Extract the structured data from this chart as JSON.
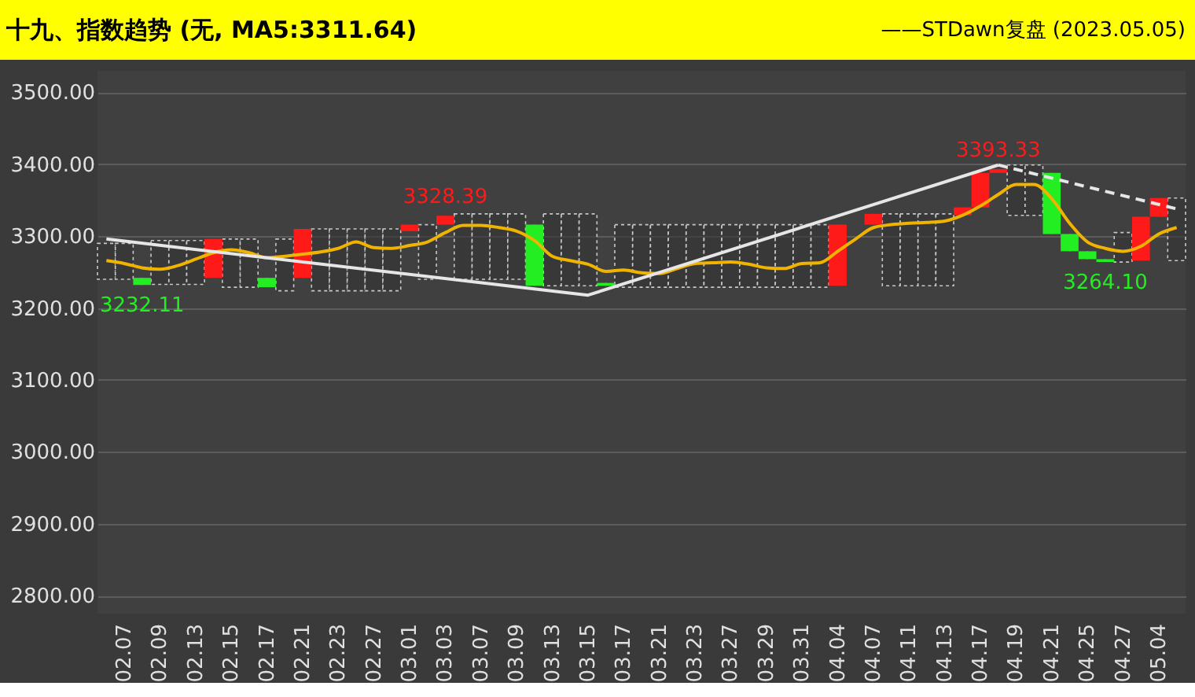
{
  "chart_data": {
    "type": "candlestick",
    "title": "十九、指数趋势 (无, MA5:3311.64)",
    "annotations": [
      "——STDawn复盘 (2023.05.05)"
    ],
    "categories": [
      null,
      "02.07",
      null,
      "02.09",
      null,
      "02.13",
      null,
      "02.15",
      null,
      "02.17",
      null,
      "02.21",
      null,
      "02.23",
      null,
      "02.27",
      null,
      "03.01",
      null,
      "03.03",
      null,
      "03.07",
      null,
      "03.09",
      null,
      "03.13",
      null,
      "03.15",
      null,
      "03.17",
      null,
      "03.21",
      null,
      "03.23",
      null,
      "03.27",
      null,
      "03.29",
      null,
      "03.31",
      null,
      "04.04",
      null,
      "04.07",
      null,
      "04.11",
      null,
      "04.13",
      null,
      "04.17",
      null,
      "04.19",
      null,
      "04.21",
      null,
      "04.25",
      null,
      "04.27",
      null,
      "05.04",
      null
    ],
    "ohlc": [
      null,
      null,
      [
        3242,
        3242,
        3232.11,
        3232.11
      ],
      null,
      null,
      null,
      [
        3242,
        3296,
        3242,
        3296
      ],
      null,
      null,
      [
        3242,
        3242,
        3229,
        3229
      ],
      null,
      [
        3242,
        3310,
        3242,
        3310
      ],
      null,
      null,
      null,
      null,
      null,
      [
        3307,
        3316,
        3307,
        3316
      ],
      null,
      [
        3316,
        3328.39,
        3316,
        3328.39
      ],
      null,
      null,
      null,
      null,
      [
        3316,
        3316,
        3231,
        3231
      ],
      null,
      null,
      null,
      [
        3235,
        3235,
        3231,
        3231
      ],
      null,
      null,
      null,
      null,
      null,
      null,
      null,
      null,
      null,
      null,
      null,
      null,
      [
        3231,
        3316,
        3231,
        3316
      ],
      null,
      [
        3316,
        3331,
        3316,
        3331
      ],
      null,
      null,
      null,
      null,
      [
        3329,
        3340,
        3329,
        3340
      ],
      [
        3340,
        3388,
        3340,
        3388
      ],
      [
        3388,
        3393.33,
        3388,
        3393.33
      ],
      null,
      null,
      [
        3388,
        3388,
        3303,
        3303
      ],
      [
        3303,
        3303,
        3279,
        3279
      ],
      [
        3279,
        3279,
        3268,
        3268
      ],
      [
        3268,
        3268,
        3264.1,
        3264.1
      ],
      null,
      [
        3266,
        3327,
        3266,
        3327
      ],
      [
        3327,
        3353,
        3327,
        3353
      ],
      null
    ],
    "colors": [
      null,
      null,
      "#22ee22",
      null,
      null,
      null,
      "#ff1a1a",
      null,
      null,
      "#22ee22",
      null,
      "#ff1a1a",
      null,
      null,
      null,
      null,
      null,
      "#ff1a1a",
      null,
      "#ff1a1a",
      null,
      null,
      null,
      null,
      "#22ee22",
      null,
      null,
      null,
      "#22ee22",
      null,
      null,
      null,
      null,
      null,
      null,
      null,
      null,
      null,
      null,
      null,
      null,
      "#ff1a1a",
      null,
      "#ff1a1a",
      null,
      null,
      null,
      null,
      "#ff1a1a",
      "#ff1a1a",
      "#ff1a1a",
      null,
      null,
      "#22ee22",
      "#22ee22",
      "#22ee22",
      "#22ee22",
      null,
      "#ff1a1a",
      "#ff1a1a",
      null
    ],
    "value_labels": [
      null,
      null,
      "3232.11",
      null,
      null,
      null,
      null,
      null,
      null,
      null,
      null,
      null,
      null,
      null,
      null,
      null,
      null,
      null,
      null,
      "3328.39",
      null,
      null,
      null,
      null,
      null,
      null,
      null,
      null,
      null,
      null,
      null,
      null,
      null,
      null,
      null,
      null,
      null,
      null,
      null,
      null,
      null,
      null,
      null,
      null,
      null,
      null,
      null,
      null,
      null,
      null,
      "3393.33",
      null,
      null,
      null,
      null,
      null,
      "3264.10",
      null,
      null,
      null,
      null
    ],
    "series": [
      {
        "type": "bar",
        "color": "#c8c8c8",
        "base": [
          3240,
          3240,
          null,
          3233,
          3233,
          3233,
          null,
          3229,
          3229,
          null,
          3224,
          null,
          3224,
          3224,
          3224,
          3224,
          3224,
          null,
          3240,
          null,
          3240,
          3240,
          3240,
          3240,
          null,
          3231,
          3231,
          3231,
          null,
          3229,
          3229,
          3229,
          3229,
          3229,
          3229,
          3229,
          3229,
          3229,
          3229,
          3229,
          3229,
          null,
          null,
          null,
          3231,
          3231,
          3231,
          3231,
          null,
          null,
          null,
          3329,
          3329,
          null,
          null,
          null,
          null,
          3264,
          null,
          null,
          3266
        ],
        "values": [
          50,
          50,
          null,
          61,
          61,
          61,
          null,
          67,
          67,
          null,
          72,
          null,
          86,
          86,
          86,
          86,
          86,
          null,
          76,
          null,
          91,
          91,
          91,
          91,
          null,
          100,
          100,
          100,
          null,
          87,
          87,
          87,
          87,
          87,
          87,
          87,
          87,
          87,
          87,
          87,
          87,
          null,
          null,
          null,
          100,
          100,
          100,
          100,
          null,
          null,
          null,
          70,
          70,
          null,
          null,
          null,
          null,
          41,
          null,
          null,
          87
        ]
      },
      {
        "type": "line",
        "color": "#f0b400",
        "line_style": "solid",
        "values": [
          3266,
          3262,
          3256,
          3254,
          3259,
          3268,
          3277,
          3281,
          3277,
          3270,
          3272,
          3275,
          3278,
          3283,
          3292,
          3284,
          3283,
          3287,
          3292,
          3305,
          3315,
          3315,
          3312,
          3307,
          3294,
          3272,
          3266,
          3261,
          3251,
          3253,
          3249,
          3248,
          3255,
          3262,
          3263,
          3264,
          3261,
          3256,
          3255,
          3262,
          3263,
          3279,
          3296,
          3312,
          3316,
          3318,
          3319,
          3321,
          3329,
          3342,
          3358,
          3372,
          3372,
          3352,
          3318,
          3292,
          3283,
          3279,
          3286,
          3303,
          3312
        ]
      },
      {
        "type": "line",
        "color": "#e6e6e6",
        "line_style": "solid",
        "values": [
          3296,
          null,
          null,
          null,
          null,
          null,
          null,
          null,
          null,
          null,
          null,
          null,
          null,
          null,
          null,
          null,
          null,
          null,
          null,
          null,
          null,
          null,
          null,
          null,
          null,
          null,
          null,
          3218,
          null,
          null,
          null,
          null,
          null,
          null,
          null,
          null,
          null,
          null,
          null,
          null,
          null,
          null,
          null,
          null,
          null,
          null,
          null,
          null,
          null,
          null,
          3399,
          null,
          null,
          null,
          null,
          null,
          null,
          null,
          null,
          null,
          null
        ]
      },
      {
        "type": "line",
        "color": "#e6e6e6",
        "line_style": "dashed",
        "values": [
          null,
          null,
          null,
          null,
          null,
          null,
          null,
          null,
          null,
          null,
          null,
          null,
          null,
          null,
          null,
          null,
          null,
          null,
          null,
          null,
          null,
          null,
          null,
          null,
          null,
          null,
          null,
          null,
          null,
          null,
          null,
          null,
          null,
          null,
          null,
          null,
          null,
          null,
          null,
          null,
          null,
          null,
          null,
          null,
          null,
          null,
          null,
          null,
          null,
          null,
          3399,
          null,
          null,
          null,
          null,
          null,
          null,
          null,
          null,
          null,
          3338
        ]
      }
    ],
    "ylim": [
      2775,
      3530
    ],
    "yticks": [
      {
        "value": 2800,
        "label": "2800.00"
      },
      {
        "value": 2900,
        "label": "2900.00"
      },
      {
        "value": 3000,
        "label": "3000.00"
      },
      {
        "value": 3100,
        "label": "3100.00"
      },
      {
        "value": 3200,
        "label": "3200.00"
      },
      {
        "value": 3300,
        "label": "3300.00"
      },
      {
        "value": 3400,
        "label": "3400.00"
      },
      {
        "value": 3500,
        "label": "3500.00"
      }
    ],
    "grid": "y"
  }
}
